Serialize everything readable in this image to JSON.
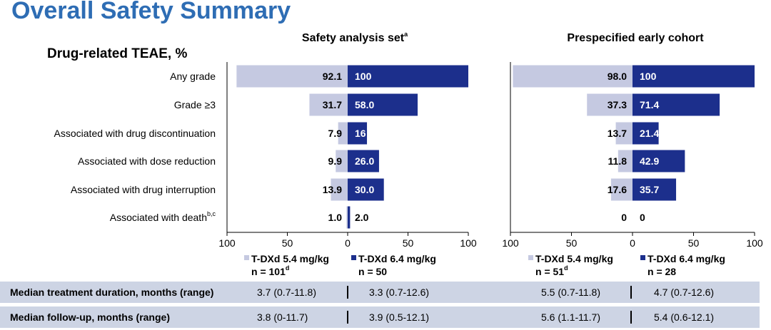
{
  "title": "Overall Safety Summary",
  "chart_data": {
    "type": "bar",
    "orientation": "horizontal-butterfly",
    "ylabel": "Drug-related TEAE, %",
    "categories": [
      {
        "label": "Any grade"
      },
      {
        "label": "Grade ≥3"
      },
      {
        "label": "Associated with drug discontinuation"
      },
      {
        "label": "Associated with dose reduction"
      },
      {
        "label": "Associated with drug interruption"
      },
      {
        "label": "Associated with death",
        "sup": "b,c"
      }
    ],
    "xlim": [
      -100,
      100
    ],
    "xticks": [
      "100",
      "50",
      "0",
      "50",
      "100"
    ],
    "panels": [
      {
        "title": "Safety analysis set",
        "title_sup": "a",
        "series": [
          {
            "name": "T-DXd 5.4 mg/kg",
            "n_label": "n = 101",
            "n_sup": "d",
            "color": "#c5c9e1",
            "values": [
              92.1,
              31.7,
              7.9,
              9.9,
              13.9,
              1.0
            ],
            "labels": [
              "92.1",
              "31.7",
              "7.9",
              "9.9",
              "13.9",
              "1.0"
            ]
          },
          {
            "name": "T-DXd 6.4 mg/kg",
            "n_label": "n = 50",
            "n_sup": "",
            "color": "#1c2f8c",
            "values": [
              100,
              58.0,
              16,
              26.0,
              30.0,
              2.0
            ],
            "labels": [
              "100",
              "58.0",
              "16",
              "26.0",
              "30.0",
              "2.0"
            ]
          }
        ]
      },
      {
        "title": "Prespecified early cohort",
        "title_sup": "",
        "series": [
          {
            "name": "T-DXd 5.4 mg/kg",
            "n_label": "n = 51",
            "n_sup": "d",
            "color": "#c5c9e1",
            "values": [
              98.0,
              37.3,
              13.7,
              11.8,
              17.6,
              0
            ],
            "labels": [
              "98.0",
              "37.3",
              "13.7",
              "11.8",
              "17.6",
              "0"
            ]
          },
          {
            "name": "T-DXd 6.4 mg/kg",
            "n_label": "n = 28",
            "n_sup": "",
            "color": "#1c2f8c",
            "values": [
              100,
              71.4,
              21.4,
              42.9,
              35.7,
              0
            ],
            "labels": [
              "100",
              "71.4",
              "21.4",
              "42.9",
              "35.7",
              "0"
            ]
          }
        ]
      }
    ]
  },
  "table": {
    "rows": [
      {
        "label": "Median treatment duration, months (range)",
        "cells": [
          "3.7 (0.7-11.8)",
          "3.3 (0.7-12.6)",
          "5.5 (0.7-11.8)",
          "4.7 (0.7-12.6)"
        ]
      },
      {
        "label": "Median follow-up, months (range)",
        "cells": [
          "3.8 (0-11.7)",
          "3.9 (0.5-12.1)",
          "5.6 (1.1-11.7)",
          "5.4 (0.6-12.1)"
        ]
      }
    ]
  }
}
